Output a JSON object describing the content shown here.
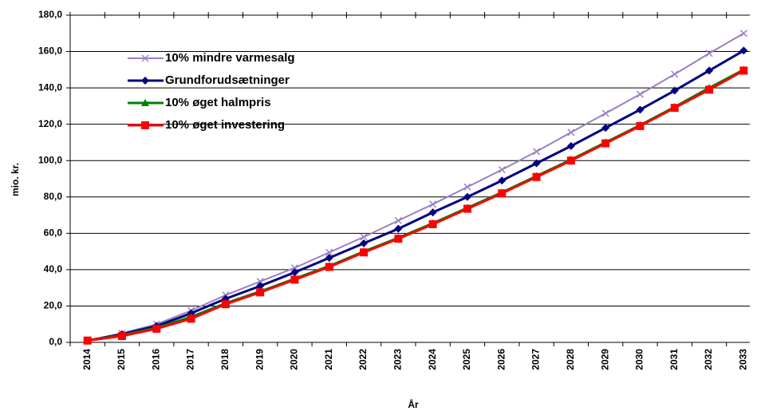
{
  "chart_data": {
    "type": "line",
    "x_label": "År",
    "y_label": "mio. kr.",
    "categories": [
      "2014",
      "2015",
      "2016",
      "2017",
      "2018",
      "2019",
      "2020",
      "2021",
      "2022",
      "2023",
      "2024",
      "2025",
      "2026",
      "2027",
      "2028",
      "2029",
      "2030",
      "2031",
      "2032",
      "2033"
    ],
    "ylim": [
      0,
      180
    ],
    "yticks": [
      {
        "value": 0,
        "label": "0,0"
      },
      {
        "value": 20,
        "label": "20,0"
      },
      {
        "value": 40,
        "label": "40,0"
      },
      {
        "value": 60,
        "label": "60,0"
      },
      {
        "value": 80,
        "label": "80,0"
      },
      {
        "value": 100,
        "label": "100,0"
      },
      {
        "value": 120,
        "label": "120,0"
      },
      {
        "value": 140,
        "label": "140,0"
      },
      {
        "value": 160,
        "label": "160,0"
      },
      {
        "value": 180,
        "label": "180,0"
      }
    ],
    "grid": true,
    "legend": "upper left",
    "series": [
      {
        "name": "10% mindre varmesalg",
        "color": "#9b7fc4",
        "marker": "x",
        "values": [
          1,
          5,
          10,
          17.5,
          26,
          33.5,
          41,
          49.5,
          58,
          67,
          76,
          85.5,
          95,
          105,
          115.5,
          126,
          136.5,
          147.5,
          159,
          170
        ]
      },
      {
        "name": "Grundforudsætninger",
        "color": "#000080",
        "marker": "diamond",
        "values": [
          1,
          4.5,
          9,
          16,
          24,
          31,
          38.5,
          46.5,
          54.5,
          62.5,
          71.5,
          80,
          89,
          98.5,
          108,
          118,
          128,
          138.5,
          149.5,
          160.5
        ]
      },
      {
        "name": "10% øget halmpris",
        "color": "#008000",
        "marker": "triangle",
        "values": [
          1,
          4,
          8,
          14,
          21.5,
          28,
          35,
          42,
          50,
          57.5,
          65.5,
          74,
          82.5,
          91.5,
          100.5,
          110,
          119.5,
          129.5,
          140,
          150
        ]
      },
      {
        "name": "10% øget investering",
        "color": "#ff0000",
        "marker": "square",
        "values": [
          1,
          3.5,
          7.5,
          13,
          21,
          27.5,
          34.5,
          41.5,
          49.5,
          57,
          65,
          73.5,
          82,
          91,
          100,
          109.5,
          119,
          129,
          139,
          149.5
        ]
      }
    ]
  }
}
